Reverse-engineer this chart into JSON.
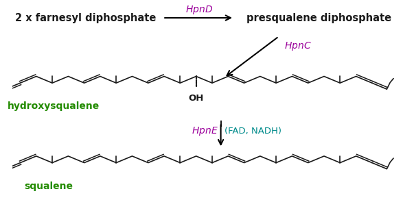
{
  "bg_color": "#ffffff",
  "text_color_dark": "#1a1a1a",
  "text_color_green": "#228B00",
  "text_color_purple": "#9B009B",
  "text_color_teal": "#008B8B",
  "top_left_text": "2 x farnesyl diphosphate",
  "top_right_text": "presqualene diphosphate",
  "enzyme1": "HpnD",
  "enzyme2": "HpnC",
  "enzyme3": "HpnE",
  "cofactors": "(FAD, NADH)",
  "label1": "hydroxysqualene",
  "label2": "squalene",
  "oh_label": "OH",
  "figw": 6.03,
  "figh": 2.92,
  "dpi": 100
}
